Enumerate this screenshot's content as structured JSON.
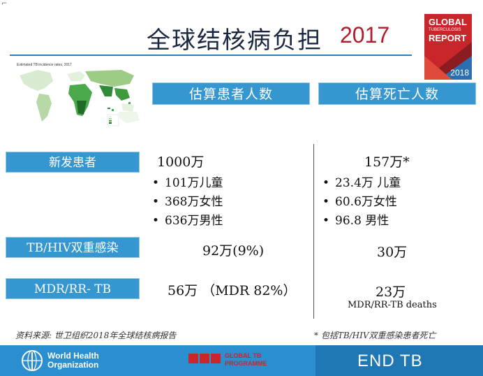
{
  "title": "全球结核病负担",
  "year": "2017",
  "report_cover": {
    "line1": "GLOBAL",
    "line2": "TUBERCULOSIS",
    "line3": "REPORT",
    "year": "2018"
  },
  "map_title": "Estimated TB incidence rates, 2017",
  "headers": {
    "cases": "估算患者人数",
    "deaths": "估算死亡人数"
  },
  "rows": {
    "new_cases": {
      "label": "新发患者",
      "cases_total": "1000万",
      "cases_items": [
        "101万儿童",
        "368万女性",
        "636万男性"
      ],
      "deaths_total": "157万*",
      "deaths_items": [
        "23.4万 儿童",
        "60.6万女性",
        "96.8 男性"
      ]
    },
    "tb_hiv": {
      "label": "TB/HIV双重感染",
      "cases": "92万(9%)",
      "deaths": "30万"
    },
    "mdr": {
      "label": "MDR/RR- TB",
      "cases": "56万 （MDR 82%）",
      "deaths": "23万",
      "deaths_note": "MDR/RR-TB deaths"
    }
  },
  "source": "资料来源: 世卫组织2018年全球结核病报告",
  "footnote": "* 包括TB/HIV双重感染患者死亡",
  "footer": {
    "who_line1": "World Health",
    "who_line2": "Organization",
    "gtb_line1": "GLOBAL TB",
    "gtb_line2": "PROGRAMME",
    "end_tb": "END TB"
  },
  "colors": {
    "header_blue": "#3596d0",
    "title_red": "#b11e2b",
    "footer_blue": "#2b8fcf",
    "programme_red": "#c9262b"
  }
}
